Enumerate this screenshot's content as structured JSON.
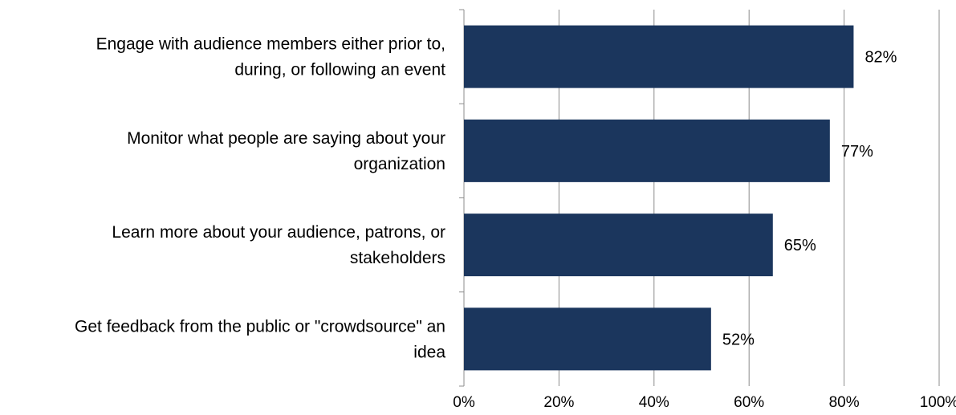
{
  "chart_data": {
    "type": "bar",
    "orientation": "horizontal",
    "categories": [
      [
        "Engage with audience members either prior to,",
        "during, or following an event"
      ],
      [
        "Monitor what people are saying about your",
        "organization"
      ],
      [
        "Learn more about your audience, patrons, or",
        "stakeholders"
      ],
      [
        "Get feedback from the public or \"crowdsource\" an",
        "idea"
      ]
    ],
    "values": [
      82,
      77,
      65,
      52
    ],
    "data_labels": [
      "82%",
      "77%",
      "65%",
      "52%"
    ],
    "x_ticks": [
      0,
      20,
      40,
      60,
      80,
      100
    ],
    "x_tick_labels": [
      "0%",
      "20%",
      "40%",
      "60%",
      "80%",
      "100%"
    ],
    "xlim": [
      0,
      100
    ],
    "grid": "vertical",
    "legend": "none",
    "colors": {
      "bar": "#1b365d",
      "grid": "#8c8c8c",
      "axis": "#8c8c8c"
    }
  }
}
